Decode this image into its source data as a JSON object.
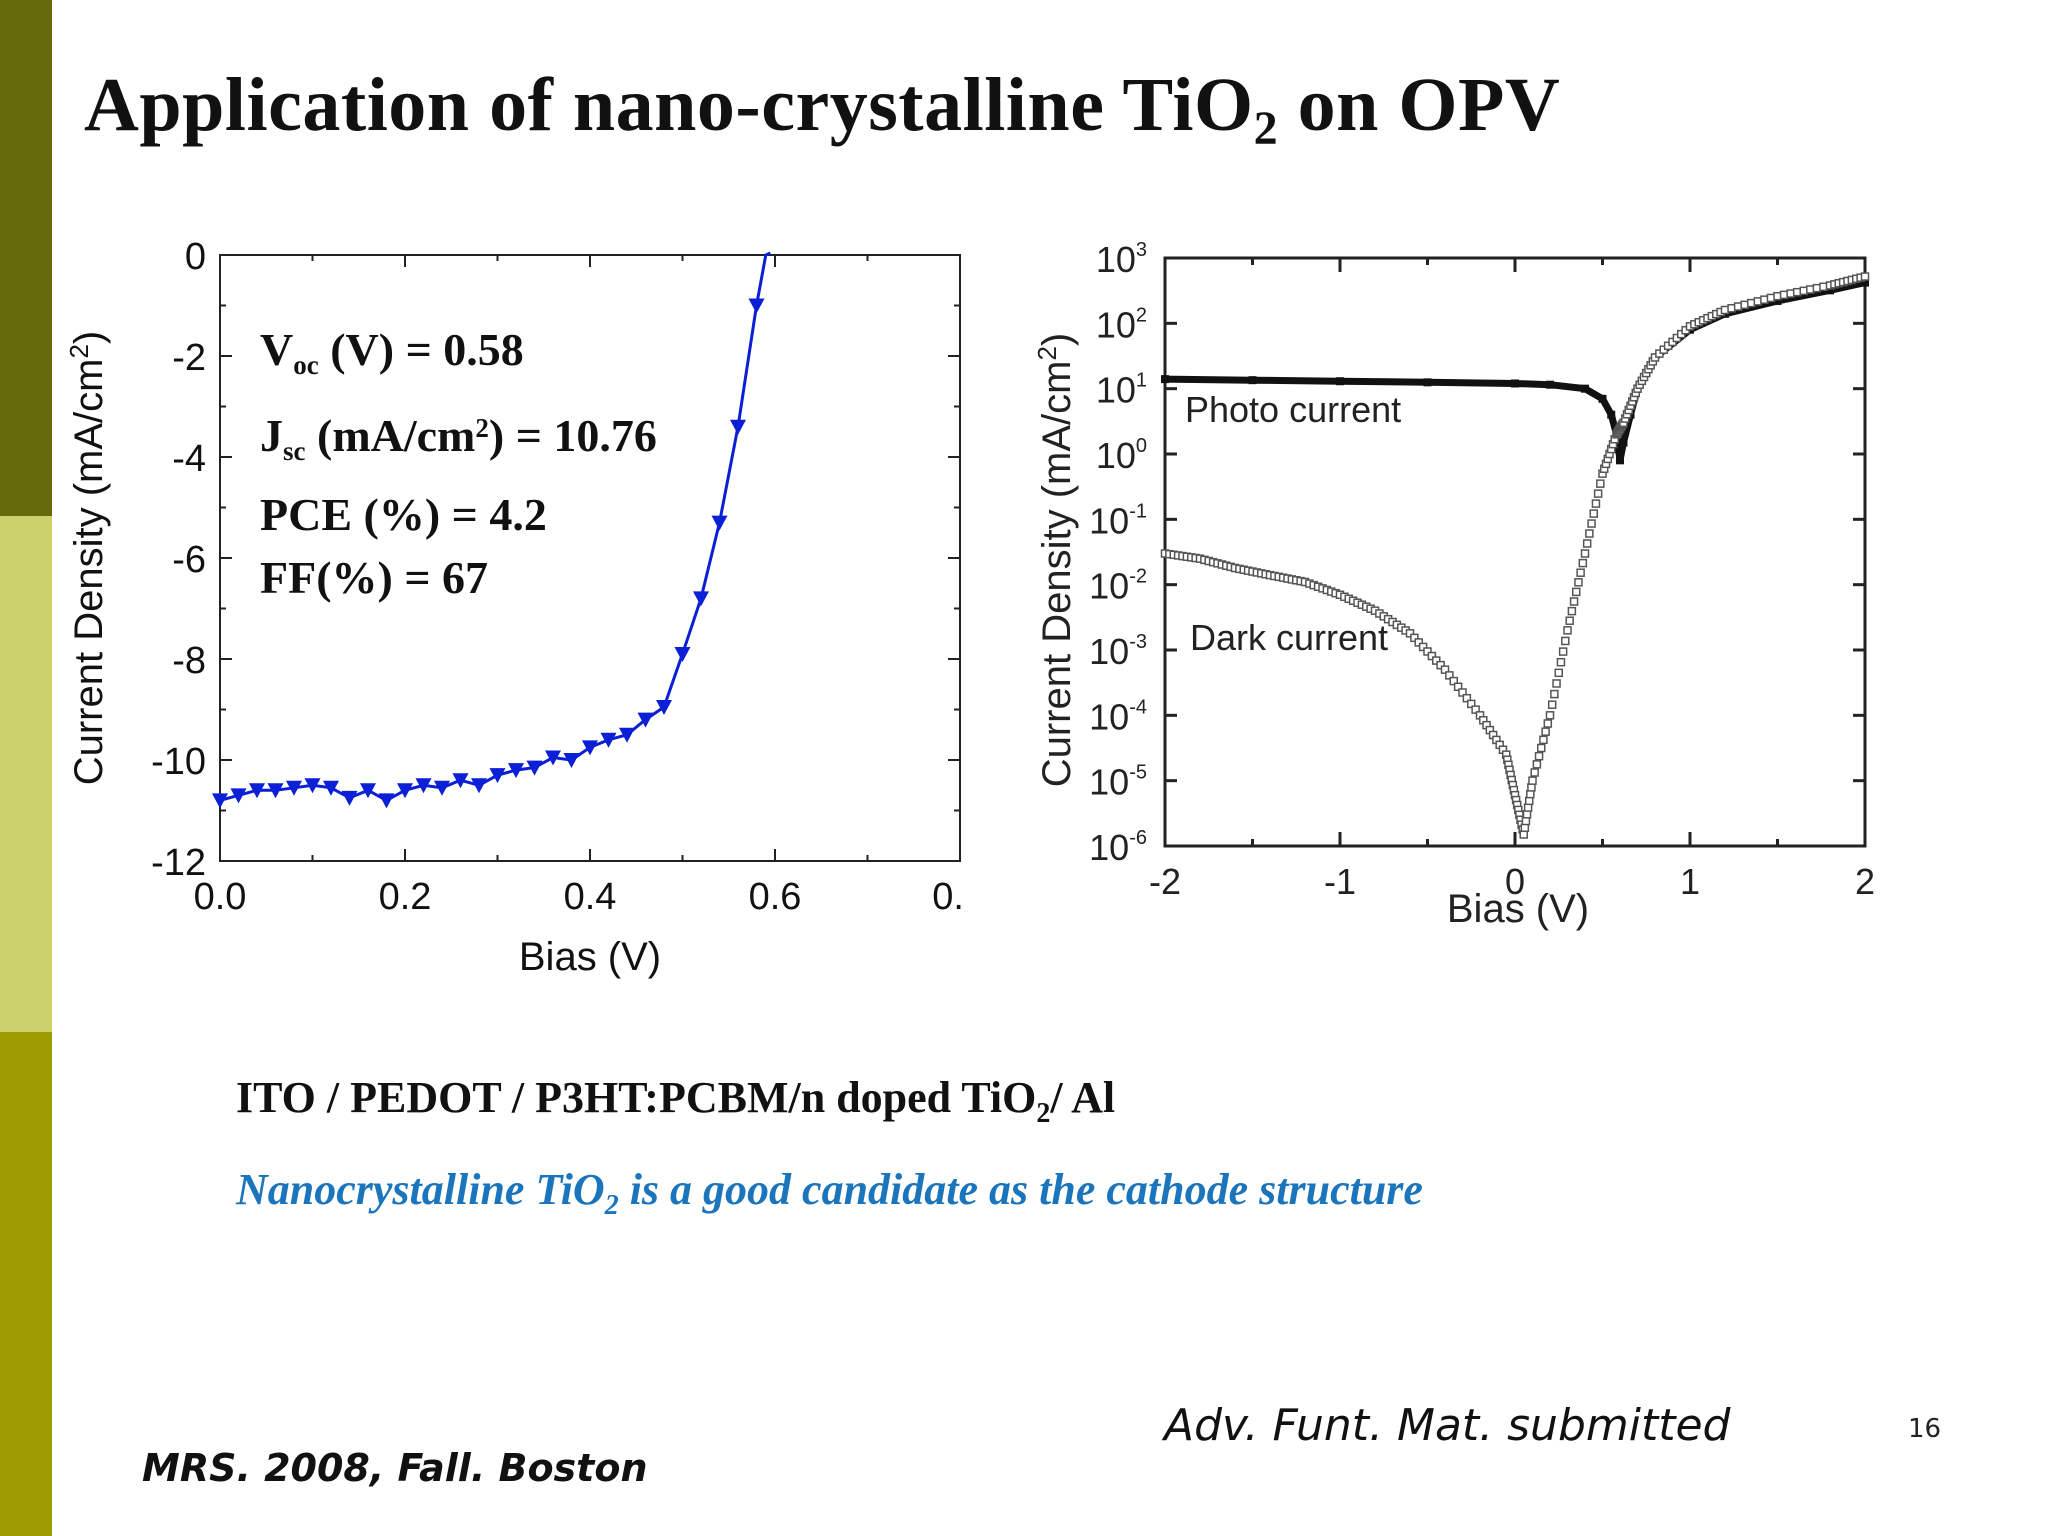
{
  "slide": {
    "title_main": "Application of nano-crystalline TiO",
    "title_sub": "2",
    "title_end": " on OPV",
    "device_main": "ITO / PEDOT / P3HT:PCBM/n doped TiO",
    "device_sub": "2",
    "device_end": "/ Al",
    "conclusion_main": "Nanocrystalline TiO",
    "conclusion_sub": "2",
    "conclusion_end": " is a good candidate as the cathode structure",
    "reference": "Adv. Funt. Mat. submitted",
    "conference": "MRS. 2008, Fall. Boston",
    "page_number": "16"
  },
  "colors": {
    "band_dark": "#66680c",
    "band_light": "#cdd16b",
    "band_olive": "#9c9c00",
    "series_blue": "#0a1fd6",
    "conclusion_blue": "#1b75bc"
  },
  "stats": {
    "voc": {
      "main": "V",
      "sub": "oc",
      "rest": "(V) = 0.58"
    },
    "jsc": {
      "main": "J",
      "sub": "sc",
      "mid": "(mA/cm",
      "sup": "2",
      "rest": ") = 10.76"
    },
    "pce": "PCE (%) = 4.2",
    "ff": "FF(%) = 67"
  },
  "chart_data": [
    {
      "type": "line",
      "xlabel": "Bias (V)",
      "ylabel": "Current Density (mA/cm2)",
      "xlim": [
        0.0,
        0.8
      ],
      "ylim": [
        -12,
        0
      ],
      "x_ticks": [
        "0.0",
        "0.2",
        "0.4",
        "0.6",
        "0."
      ],
      "y_ticks": [
        "0",
        "-2",
        "-4",
        "-6",
        "-8",
        "-10",
        "-12"
      ],
      "marker": "down-triangle",
      "series": [
        {
          "color": "#0a1fd6",
          "x": [
            0.0,
            0.02,
            0.04,
            0.06,
            0.08,
            0.1,
            0.12,
            0.14,
            0.16,
            0.18,
            0.2,
            0.22,
            0.24,
            0.26,
            0.28,
            0.3,
            0.32,
            0.34,
            0.36,
            0.38,
            0.4,
            0.42,
            0.44,
            0.46,
            0.48,
            0.5,
            0.52,
            0.54,
            0.56,
            0.58,
            0.59
          ],
          "y": [
            -10.8,
            -10.7,
            -10.6,
            -10.6,
            -10.55,
            -10.5,
            -10.55,
            -10.75,
            -10.6,
            -10.8,
            -10.6,
            -10.5,
            -10.55,
            -10.4,
            -10.5,
            -10.3,
            -10.2,
            -10.15,
            -9.95,
            -10.0,
            -9.75,
            -9.6,
            -9.5,
            -9.2,
            -8.95,
            -7.9,
            -6.8,
            -5.3,
            -3.4,
            -1.0,
            0.0
          ]
        }
      ]
    },
    {
      "type": "line",
      "y_scale": "log",
      "xlabel": "Bias (V)",
      "ylabel": "Current Density (mA/cm2)",
      "xlim": [
        -2,
        2
      ],
      "ylim": [
        1e-06,
        1000
      ],
      "x_ticks": [
        "-2",
        "-1",
        "0",
        "1",
        "2"
      ],
      "y_ticks": [
        "10^3",
        "10^2",
        "10^1",
        "10^0",
        "10^-1",
        "10^-2",
        "10^-3",
        "10^-4",
        "10^-5",
        "10^-6"
      ],
      "series": [
        {
          "name": "Photo current",
          "color": "#111111",
          "style": "filled-squares",
          "x": [
            -2.0,
            -1.5,
            -1.0,
            -0.5,
            0.0,
            0.2,
            0.4,
            0.5,
            0.55,
            0.58,
            0.6,
            0.62,
            0.66,
            0.7,
            0.8,
            1.0,
            1.2,
            1.5,
            1.8,
            2.0
          ],
          "y": [
            14,
            13.5,
            13,
            12.5,
            12,
            11.5,
            10,
            7,
            4,
            2,
            0.8,
            1.5,
            4,
            10,
            30,
            80,
            140,
            220,
            320,
            420
          ]
        },
        {
          "name": "Dark current",
          "color": "#555555",
          "style": "open-squares",
          "x": [
            -2.0,
            -1.8,
            -1.6,
            -1.4,
            -1.2,
            -1.0,
            -0.8,
            -0.6,
            -0.4,
            -0.2,
            -0.05,
            0.0,
            0.05,
            0.1,
            0.2,
            0.3,
            0.4,
            0.5,
            0.58,
            0.62,
            0.7,
            0.8,
            1.0,
            1.2,
            1.5,
            1.8,
            2.0
          ],
          "y": [
            0.03,
            0.025,
            0.018,
            0.014,
            0.011,
            0.007,
            0.004,
            0.0018,
            0.0005,
            0.0001,
            2.5e-05,
            6e-06,
            1.5e-06,
            1e-05,
            0.0001,
            0.002,
            0.03,
            0.5,
            2,
            3,
            10,
            30,
            90,
            160,
            260,
            380,
            520
          ]
        }
      ]
    }
  ]
}
